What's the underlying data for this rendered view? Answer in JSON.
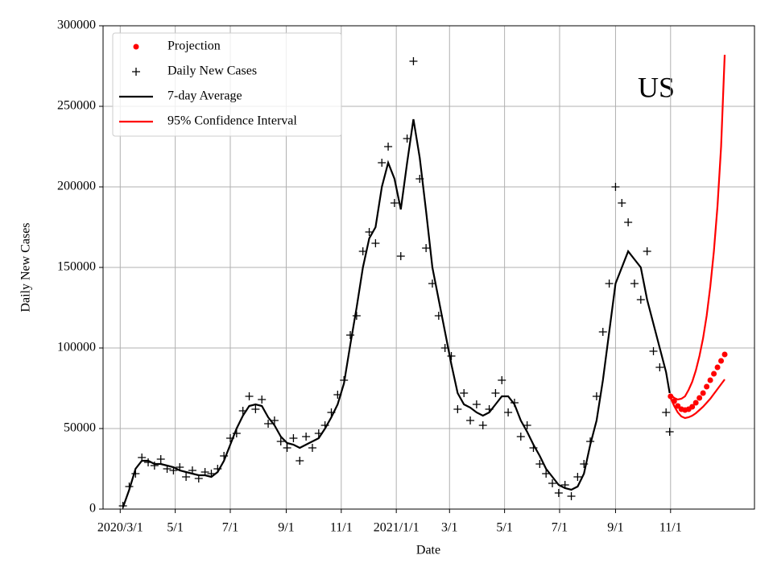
{
  "chart_data": {
    "type": "line",
    "annotation": "US",
    "xlabel": "Date",
    "ylabel": "Daily New Cases",
    "xlim": [
      -19,
      703
    ],
    "xticks": [
      {
        "value": 0,
        "label": "2020/3/1"
      },
      {
        "value": 61,
        "label": "5/1"
      },
      {
        "value": 122,
        "label": "7/1"
      },
      {
        "value": 184,
        "label": "9/1"
      },
      {
        "value": 245,
        "label": "11/1"
      },
      {
        "value": 306,
        "label": "2021/1/1"
      },
      {
        "value": 365,
        "label": "3/1"
      },
      {
        "value": 426,
        "label": "5/1"
      },
      {
        "value": 487,
        "label": "7/1"
      },
      {
        "value": 549,
        "label": "9/1"
      },
      {
        "value": 610,
        "label": "11/1"
      }
    ],
    "ylim": [
      0,
      300000
    ],
    "yticks": [
      0,
      50000,
      100000,
      150000,
      200000,
      250000,
      300000
    ],
    "grid": true,
    "legend": "upper left",
    "series": [
      {
        "name": "Projection",
        "kind": "dots",
        "color": "#ff0000",
        "x": [
          610,
          614,
          618,
          622,
          626,
          630,
          634,
          638,
          642,
          646,
          650,
          654,
          658,
          662,
          666,
          670
        ],
        "values": [
          70000,
          67000,
          64000,
          62000,
          61500,
          62000,
          63500,
          66000,
          69000,
          72000,
          76000,
          80000,
          84000,
          88000,
          92000,
          96000
        ]
      },
      {
        "name": "Daily New Cases",
        "kind": "plus",
        "color": "#000000",
        "x": [
          3,
          10,
          17,
          24,
          31,
          38,
          45,
          52,
          59,
          66,
          73,
          80,
          87,
          94,
          101,
          108,
          115,
          122,
          129,
          136,
          143,
          150,
          157,
          164,
          171,
          178,
          185,
          192,
          199,
          206,
          213,
          220,
          227,
          234,
          241,
          248,
          255,
          262,
          269,
          276,
          283,
          290,
          297,
          304,
          311,
          318,
          325,
          332,
          339,
          346,
          353,
          360,
          367,
          374,
          381,
          388,
          395,
          402,
          409,
          416,
          423,
          430,
          437,
          444,
          451,
          458,
          465,
          472,
          479,
          486,
          493,
          500,
          507,
          514,
          521,
          528,
          535,
          542,
          549,
          556,
          563,
          570,
          577,
          584,
          591,
          598,
          605,
          609
        ],
        "values": [
          2000,
          14000,
          22000,
          32000,
          29000,
          27000,
          31000,
          25000,
          24000,
          26000,
          20000,
          24000,
          19000,
          23000,
          22000,
          25000,
          33000,
          44000,
          47000,
          61000,
          70000,
          62000,
          68000,
          53000,
          55000,
          42000,
          38000,
          44000,
          30000,
          45000,
          38000,
          47000,
          52000,
          60000,
          71000,
          80000,
          108000,
          120000,
          160000,
          172000,
          165000,
          215000,
          225000,
          190000,
          157000,
          230000,
          278000,
          205000,
          162000,
          140000,
          120000,
          100000,
          95000,
          62000,
          72000,
          55000,
          65000,
          52000,
          62000,
          72000,
          80000,
          60000,
          66000,
          45000,
          52000,
          38000,
          28000,
          22000,
          16000,
          10000,
          15000,
          8000,
          20000,
          28000,
          42000,
          70000,
          110000,
          140000,
          200000,
          190000,
          178000,
          140000,
          130000,
          160000,
          98000,
          88000,
          60000,
          48000
        ]
      },
      {
        "name": "7-day Average",
        "kind": "line",
        "color": "#000000",
        "x": [
          3,
          10,
          17,
          24,
          31,
          38,
          45,
          52,
          59,
          66,
          73,
          80,
          87,
          94,
          101,
          108,
          115,
          122,
          129,
          136,
          143,
          150,
          157,
          164,
          171,
          178,
          185,
          192,
          199,
          206,
          213,
          220,
          227,
          234,
          241,
          248,
          255,
          262,
          269,
          276,
          283,
          290,
          297,
          304,
          311,
          318,
          325,
          332,
          339,
          346,
          353,
          360,
          367,
          374,
          381,
          388,
          395,
          402,
          409,
          416,
          423,
          430,
          437,
          444,
          451,
          458,
          465,
          472,
          479,
          486,
          493,
          500,
          507,
          514,
          521,
          528,
          535,
          542,
          549,
          556,
          563,
          570,
          577,
          584,
          591,
          598,
          605,
          609
        ],
        "values": [
          1000,
          12000,
          25000,
          30000,
          30000,
          28000,
          28000,
          27000,
          26000,
          24000,
          23000,
          22000,
          21000,
          21000,
          20000,
          23000,
          30000,
          40000,
          50000,
          58000,
          64000,
          65000,
          64000,
          57000,
          52000,
          45000,
          41000,
          40000,
          38000,
          40000,
          42000,
          44000,
          50000,
          57000,
          65000,
          78000,
          102000,
          125000,
          150000,
          168000,
          175000,
          200000,
          215000,
          205000,
          186000,
          215000,
          242000,
          218000,
          185000,
          150000,
          130000,
          110000,
          90000,
          72000,
          65000,
          63000,
          60000,
          58000,
          60000,
          65000,
          70000,
          70000,
          65000,
          55000,
          48000,
          40000,
          33000,
          25000,
          20000,
          15000,
          13000,
          12000,
          14000,
          22000,
          40000,
          55000,
          80000,
          110000,
          140000,
          150000,
          160000,
          155000,
          150000,
          130000,
          115000,
          100000,
          85000,
          72000
        ]
      },
      {
        "name": "95% Confidence Interval",
        "kind": "band",
        "color": "#ff0000",
        "x": [
          610,
          614,
          618,
          622,
          626,
          630,
          634,
          638,
          642,
          646,
          650,
          654,
          658,
          662,
          666,
          670
        ],
        "upper": [
          71000,
          69000,
          68000,
          68500,
          70000,
          74000,
          79000,
          86000,
          95000,
          106000,
          120000,
          138000,
          160000,
          188000,
          225000,
          282000
        ],
        "lower": [
          69000,
          64000,
          60000,
          57500,
          56500,
          57000,
          58000,
          59500,
          61500,
          63500,
          66000,
          68500,
          71500,
          74500,
          77500,
          80500
        ]
      }
    ]
  }
}
